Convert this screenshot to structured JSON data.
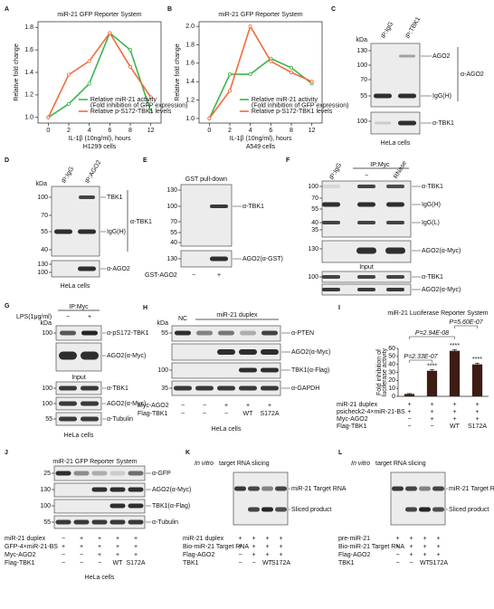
{
  "panel_labels": [
    "A",
    "B",
    "C",
    "D",
    "E",
    "F",
    "G",
    "H",
    "I",
    "J",
    "K",
    "L"
  ],
  "chart_data": [
    {
      "type": "line",
      "title": "miR-21 GFP Reporter System",
      "x_label": "IL-1β (10ng/ml), hours",
      "subtitle": "H1299 cells",
      "y_label": "Relative fold change",
      "categories": [
        "0",
        "2",
        "4",
        "6",
        "8",
        "12"
      ],
      "ylim": [
        0.95,
        1.85
      ],
      "yticks": [
        {
          "value": 1,
          "label": "1.0"
        },
        {
          "value": 1.2,
          "label": "1.2"
        },
        {
          "value": 1.4,
          "label": "1.4"
        },
        {
          "value": 1.6,
          "label": "1.6"
        },
        {
          "value": 1.8,
          "label": "1.8"
        }
      ],
      "series": [
        {
          "name": "Relative miR-21 activity",
          "note": "(Fold inhibition of GFP expression)",
          "color": "#3cb54a",
          "values": [
            1.0,
            1.12,
            1.3,
            1.75,
            1.6,
            1.05
          ]
        },
        {
          "name": "Relative p-S172-TBK1 levels",
          "color": "#f26b3a",
          "values": [
            1.0,
            1.38,
            1.5,
            1.75,
            1.45,
            1.18
          ]
        }
      ]
    },
    {
      "type": "line",
      "title": "miR-21 GFP Reporter System",
      "x_label": "IL-1β (10ng/ml), hours",
      "subtitle": "A549 cells",
      "y_label": "Relative fold change",
      "categories": [
        "0",
        "2",
        "4",
        "6",
        "8",
        "12"
      ],
      "ylim": [
        0.95,
        2.05
      ],
      "yticks": [
        {
          "value": 1,
          "label": "1.0"
        },
        {
          "value": 1.2,
          "label": "1.2"
        },
        {
          "value": 1.4,
          "label": "1.4"
        },
        {
          "value": 1.6,
          "label": "1.6"
        },
        {
          "value": 1.8,
          "label": "1.8"
        },
        {
          "value": 2,
          "label": "2.0"
        }
      ],
      "series": [
        {
          "name": "Relative miR-21 activity",
          "note": "(Fold inhibition of GFP expression)",
          "color": "#3cb54a",
          "values": [
            1.0,
            1.48,
            1.48,
            1.65,
            1.55,
            1.38
          ]
        },
        {
          "name": "Relative p-S172-TBK1 levels",
          "color": "#f26b3a",
          "values": [
            1.0,
            1.3,
            2.0,
            1.62,
            1.5,
            1.4
          ]
        }
      ]
    },
    {
      "type": "bar",
      "title": "miR-21 Luciferase Reporter System",
      "y_label": [
        "Fold inhibition of",
        "luciferase activity"
      ],
      "values": [
        3,
        32,
        57,
        40
      ],
      "errors": [
        0.5,
        1.5,
        1.5,
        1.5
      ],
      "color": "#3d1c14",
      "ylim": [
        0,
        60
      ],
      "yticks": [
        0,
        10,
        20,
        30,
        40,
        50,
        60
      ],
      "annotations": [
        {
          "label": "P=2.33E-07",
          "stars": "****"
        },
        {
          "label": "P=2.94E-08",
          "stars": "****"
        },
        {
          "label": "P=5.60E-07",
          "stars": "****"
        }
      ],
      "conditions": [
        {
          "name": "miR-21 duplex",
          "values": [
            "+",
            "+",
            "+",
            "+"
          ]
        },
        {
          "name": "psicheck2-4×miR-21-BS",
          "values": [
            "+",
            "+",
            "+",
            "+"
          ]
        },
        {
          "name": "Myc-AGO2",
          "values": [
            "−",
            "+",
            "+",
            "+"
          ]
        },
        {
          "name": "Flag-TBK1",
          "values": [
            "−",
            "−",
            "WT",
            "S172A"
          ]
        }
      ]
    }
  ],
  "panels": {
    "C": {
      "header": [
        "IP:IgG",
        "IP:TBK1"
      ],
      "kda": "kDa",
      "blots": [
        {
          "markers": [
            130,
            100,
            70,
            55
          ],
          "labels": [
            "AGO2",
            "IgG(H)"
          ],
          "antibody": "α-AGO2"
        },
        {
          "markers": [
            100
          ],
          "labels": [
            "α-TBK1"
          ]
        }
      ],
      "footer": "HeLa cells"
    },
    "D": {
      "header": [
        "IP:IgG",
        "IP:AGO2"
      ],
      "kda": "kDa",
      "blots": [
        {
          "markers": [
            100,
            70,
            55,
            40
          ],
          "labels": [
            "TBK1",
            "IgG(H)"
          ],
          "antibody": "α-TBK1"
        },
        {
          "markers": [
            130,
            100
          ],
          "labels": [
            "α-AGO2"
          ]
        }
      ],
      "footer": "HeLa cells"
    },
    "E": {
      "title": "GST pull-down",
      "blots": [
        {
          "markers": [
            130,
            100,
            70,
            55,
            40
          ],
          "labels": [
            "α-TBK1"
          ]
        },
        {
          "markers": [
            130
          ],
          "labels": [
            "AGO2(α-GST)"
          ]
        }
      ],
      "conditions": [
        {
          "name": "GST-AGO2",
          "values": [
            "−",
            "+"
          ]
        }
      ]
    },
    "F": {
      "header": [
        "IP:IgG",
        "IP:Myc"
      ],
      "lanes": [
        "−",
        "RNase"
      ],
      "blots": [
        {
          "markers": [
            100,
            70,
            55,
            40,
            35
          ],
          "labels": [
            "α-TBK1",
            "IgG(H)",
            "IgG(L)"
          ]
        },
        {
          "markers": [
            130
          ],
          "labels": [
            "AGO2(α-Myc)"
          ]
        },
        {
          "markers": [
            100
          ],
          "labels": [
            "α-TBK1"
          ]
        },
        {
          "labels": [
            "AGO2(α-Myc)"
          ]
        }
      ],
      "input": "Input"
    },
    "G": {
      "header": "IP:Myc",
      "treatment": "LPS(1μg/ml)",
      "lanes": [
        "−",
        "+"
      ],
      "kda": "kDa",
      "blots": [
        {
          "markers": [
            100
          ],
          "labels": [
            "α-pS172-TBK1"
          ]
        },
        {
          "labels": [
            "AGO2(α-Myc)"
          ]
        },
        {
          "markers": [
            100
          ],
          "labels": [
            "α-TBK1"
          ]
        },
        {
          "markers": [
            100
          ],
          "labels": [
            "AGO2(α-Myc)"
          ]
        },
        {
          "markers": [
            55
          ],
          "labels": [
            "α-Tubulin"
          ]
        }
      ],
      "input": "Input",
      "footer": "HeLa cells"
    },
    "H": {
      "header": [
        "NC",
        "miR-21 duplex"
      ],
      "kda": "kDa",
      "blots": [
        {
          "markers": [
            55
          ],
          "labels": [
            "α-PTEN"
          ]
        },
        {
          "labels": [
            "AGO2(α-Myc)"
          ]
        },
        {
          "markers": [
            100
          ],
          "labels": [
            "TBK1(α-Flag)"
          ]
        },
        {
          "markers": [
            35
          ],
          "labels": [
            "α-GAPDH"
          ]
        }
      ],
      "conditions": [
        {
          "name": "Myc-AGO2",
          "values": [
            "−",
            "−",
            "+",
            "+",
            "+"
          ]
        },
        {
          "name": "Flag-TBK1",
          "values": [
            "−",
            "−",
            "−",
            "WT",
            "S172A"
          ]
        }
      ],
      "footer": "HeLa cells"
    },
    "J": {
      "title": "miR-21 GFP Reporter System",
      "blots": [
        {
          "markers": [
            25
          ],
          "labels": [
            "α-GFP"
          ]
        },
        {
          "markers": [
            130
          ],
          "labels": [
            "AGO2(α-Myc)"
          ]
        },
        {
          "markers": [
            100
          ],
          "labels": [
            "TBK1(α-Flag)"
          ]
        },
        {
          "markers": [
            55
          ],
          "labels": [
            "α-Tubulin"
          ]
        }
      ],
      "conditions": [
        {
          "name": "miR-21 duplex",
          "values": [
            "−",
            "+",
            "+",
            "+",
            "+"
          ]
        },
        {
          "name": "GFP-4×miR-21-BS",
          "values": [
            "+",
            "+",
            "+",
            "+",
            "+"
          ]
        },
        {
          "name": "Myc-AGO2",
          "values": [
            "−",
            "−",
            "+",
            "+",
            "+"
          ]
        },
        {
          "name": "Flag-TBK1",
          "values": [
            "−",
            "−",
            "−",
            "WT",
            "S172A"
          ]
        }
      ],
      "footer": "HeLa cells"
    },
    "K": {
      "title_italic": "In vitro",
      "title": "target RNA slicing",
      "labels": [
        "miR-21 Target RNA",
        "Sliced product"
      ],
      "conditions": [
        {
          "name": "miR-21 duplex",
          "values": [
            "+",
            "+",
            "+",
            "+"
          ]
        },
        {
          "name": "Bio-miR-21 Target RNA",
          "values": [
            "+",
            "+",
            "+",
            "+"
          ]
        },
        {
          "name": "Flag-AGO2",
          "values": [
            "−",
            "+",
            "+",
            "+"
          ]
        },
        {
          "name": "TBK1",
          "values": [
            "−",
            "−",
            "WT",
            "S172A"
          ]
        }
      ]
    },
    "L": {
      "title_italic": "In vitro",
      "title": "target RNA slicing",
      "labels": [
        "miR-21 Target RNA",
        "Sliced product"
      ],
      "conditions": [
        {
          "name": "pre-miR-21",
          "values": [
            "+",
            "+",
            "+",
            "+"
          ]
        },
        {
          "name": "Bio-miR-21 Target RNA",
          "values": [
            "+",
            "+",
            "+",
            "+"
          ]
        },
        {
          "name": "Flag-AGO2",
          "values": [
            "−",
            "+",
            "+",
            "+"
          ]
        },
        {
          "name": "TBK1",
          "values": [
            "−",
            "−",
            "WT",
            "S172A"
          ]
        }
      ]
    }
  }
}
